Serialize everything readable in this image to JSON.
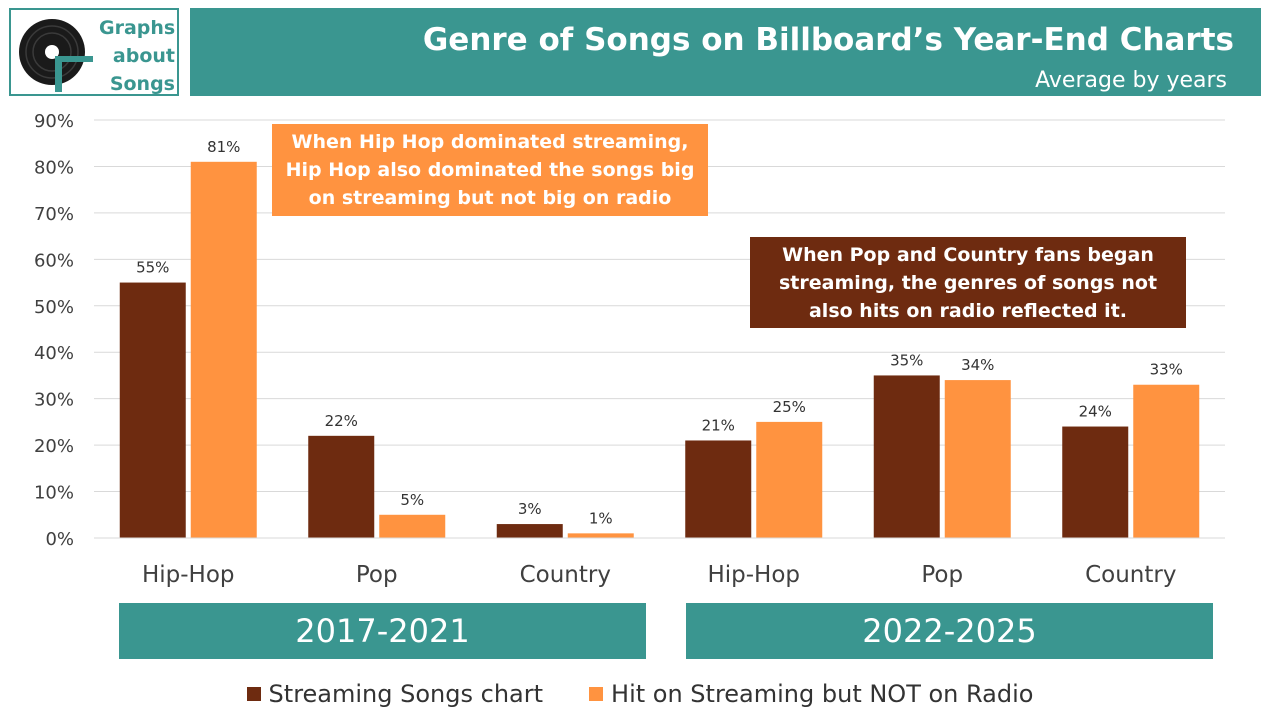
{
  "logo": {
    "line1": "Graphs",
    "line2": "about",
    "line3": "Songs"
  },
  "header": {
    "title": "Genre of Songs on Billboard’s Year-End Charts",
    "subtitle": "Average by years"
  },
  "colors": {
    "streaming": "#6e2b10",
    "not_radio": "#ff9340",
    "teal": "#3a9690"
  },
  "annotations": {
    "hiphop": "When Hip Hop dominated streaming, Hip Hop also dominated the songs big on streaming but not big on radio",
    "pop_country": "When Pop and Country fans began streaming, the genres of songs not also hits on radio reflected it."
  },
  "periods": [
    "2017-2021",
    "2022-2025"
  ],
  "legend": {
    "streaming": "Streaming Songs chart",
    "not_radio": "Hit on Streaming but NOT on Radio"
  },
  "chart_data": {
    "type": "bar",
    "title": "Genre of Songs on Billboard’s Year-End Charts",
    "subtitle": "Average by years",
    "categories": [
      "Hip-Hop",
      "Pop",
      "Country",
      "Hip-Hop",
      "Pop",
      "Country"
    ],
    "groups": [
      "2017-2021",
      "2017-2021",
      "2017-2021",
      "2022-2025",
      "2022-2025",
      "2022-2025"
    ],
    "series": [
      {
        "name": "Streaming Songs chart",
        "values": [
          55,
          22,
          3,
          21,
          35,
          24
        ],
        "labels": [
          "55%",
          "22%",
          "3%",
          "21%",
          "35%",
          "24%"
        ]
      },
      {
        "name": "Hit on Streaming but NOT on Radio",
        "values": [
          81,
          5,
          1,
          25,
          34,
          33
        ],
        "labels": [
          "81%",
          "5%",
          "1%",
          "25%",
          "34%",
          "33%"
        ]
      }
    ],
    "yticks": [
      "0%",
      "10%",
      "20%",
      "30%",
      "40%",
      "50%",
      "60%",
      "70%",
      "80%",
      "90%"
    ],
    "ylim": [
      0,
      90
    ],
    "grid": true,
    "legend_position": "bottom"
  }
}
